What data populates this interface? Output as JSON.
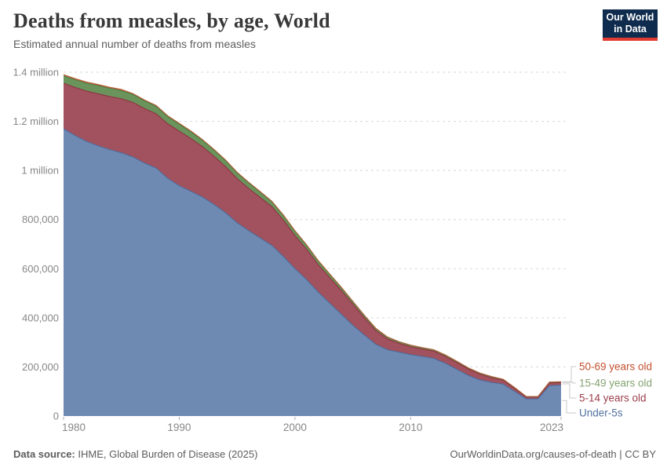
{
  "header": {
    "title": "Deaths from measles, by age, World",
    "subtitle": "Estimated annual number of deaths from measles",
    "logo": {
      "line1": "Our World",
      "line2": "in Data",
      "bg_color": "#0F2B4D",
      "accent_color": "#E23B32"
    }
  },
  "chart_data": {
    "type": "area",
    "stacked": true,
    "title": "Deaths from measles, by age, World",
    "subtitle": "Estimated annual number of deaths from measles",
    "unit": "deaths per year (series values are in thousands of deaths)",
    "grid": "horizontal dashed gridlines",
    "legend_position": "right edge, labels connected to stack ends",
    "ylim": [
      0,
      1400
    ],
    "yticks": [
      {
        "value": 0,
        "label": "0"
      },
      {
        "value": 200,
        "label": "200,000"
      },
      {
        "value": 400,
        "label": "400,000"
      },
      {
        "value": 600,
        "label": "600,000"
      },
      {
        "value": 800,
        "label": "800,000"
      },
      {
        "value": 1000,
        "label": "1 million"
      },
      {
        "value": 1200,
        "label": "1.2 million"
      },
      {
        "value": 1400,
        "label": "1.4 million"
      }
    ],
    "xticks": [
      1980,
      1990,
      2000,
      2010,
      2023
    ],
    "x": [
      1980,
      1981,
      1982,
      1983,
      1984,
      1985,
      1986,
      1987,
      1988,
      1989,
      1990,
      1991,
      1992,
      1993,
      1994,
      1995,
      1996,
      1997,
      1998,
      1999,
      2000,
      2001,
      2002,
      2003,
      2004,
      2005,
      2006,
      2007,
      2008,
      2009,
      2010,
      2011,
      2012,
      2013,
      2014,
      2015,
      2016,
      2017,
      2018,
      2019,
      2020,
      2021,
      2022,
      2023
    ],
    "series": [
      {
        "name": "Under-5s",
        "fill": "#6E8AB2",
        "edge": "#4C6A9C",
        "label_color": "#53729F",
        "values": [
          1170,
          1142,
          1118,
          1100,
          1085,
          1072,
          1055,
          1030,
          1010,
          968,
          938,
          915,
          892,
          862,
          828,
          787,
          755,
          725,
          695,
          650,
          600,
          556,
          505,
          460,
          415,
          370,
          330,
          292,
          270,
          260,
          250,
          243,
          235,
          215,
          190,
          165,
          147,
          137,
          130,
          100,
          70,
          70,
          124,
          126
        ]
      },
      {
        "name": "5-14 years old",
        "fill": "#A2525E",
        "edge": "#8C303F",
        "label_color": "#9C3F4C",
        "values": [
          185,
          196,
          205,
          212,
          216,
          220,
          222,
          222,
          221,
          222,
          222,
          215,
          205,
          196,
          188,
          180,
          172,
          165,
          158,
          148,
          135,
          124,
          112,
          104,
          96,
          86,
          70,
          56,
          44,
          36,
          32,
          30,
          29,
          28,
          27,
          26,
          23,
          19,
          16,
          12,
          7,
          7,
          11,
          10
        ]
      },
      {
        "name": "15-49 years old",
        "fill": "#6A945C",
        "edge": "#4C8047",
        "label_color": "#85A371",
        "values": [
          30,
          31,
          32,
          33,
          33,
          33,
          32,
          31,
          30,
          29,
          28,
          27,
          26,
          25,
          24,
          23,
          22,
          21,
          20,
          19,
          18,
          16,
          15,
          13,
          12,
          10,
          9,
          8,
          7,
          6,
          6,
          5,
          5,
          5,
          5,
          4,
          4,
          4,
          3,
          3,
          2,
          2,
          3,
          3
        ]
      },
      {
        "name": "50-69 years old",
        "fill": "#C06A44",
        "edge": "#B55B33",
        "label_color": "#C3512F",
        "values": [
          5,
          5,
          5,
          5,
          5,
          5,
          4,
          4,
          4,
          4,
          4,
          4,
          3,
          3,
          3,
          3,
          3,
          3,
          2,
          2,
          2,
          2,
          2,
          2,
          2,
          1.5,
          1.5,
          1,
          1,
          1,
          1,
          1,
          1,
          1,
          1,
          1,
          1,
          1,
          1,
          0.8,
          0.5,
          0.5,
          0.8,
          0.8
        ]
      }
    ]
  },
  "footer": {
    "source_label": "Data source:",
    "source_text": " IHME, Global Burden of Disease (2025)",
    "credit": "OurWorldinData.org/causes-of-death | CC BY"
  }
}
